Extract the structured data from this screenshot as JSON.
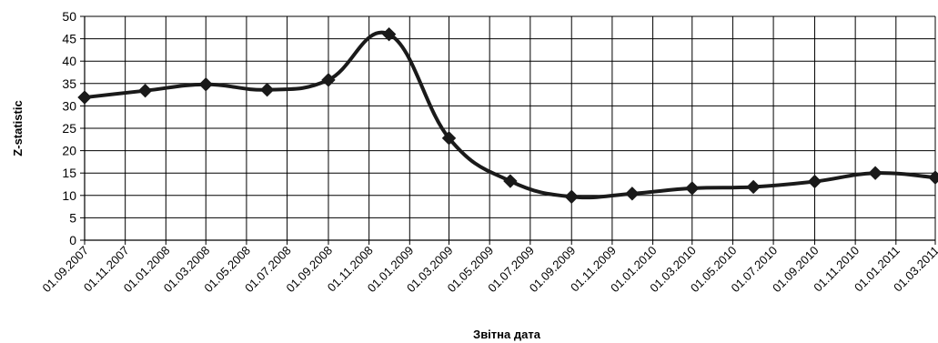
{
  "chart_data": {
    "type": "line",
    "title": "",
    "xlabel": "Звітна дата",
    "ylabel": "Z-statistic",
    "ylim": [
      0,
      50
    ],
    "yticks": [
      0,
      5,
      10,
      15,
      20,
      25,
      30,
      35,
      40,
      45,
      50
    ],
    "xticks": [
      "01.09.2007",
      "01.11.2007",
      "01.01.2008",
      "01.03.2008",
      "01.05.2008",
      "01.07.2008",
      "01.09.2008",
      "01.11.2008",
      "01.01.2009",
      "01.03.2009",
      "01.05.2009",
      "01.07.2009",
      "01.09.2009",
      "01.11.2009",
      "01.01.2010",
      "01.03.2010",
      "01.05.2010",
      "01.07.2010",
      "01.09.2010",
      "01.11.2010",
      "01.01.2011",
      "01.03.2011"
    ],
    "xlim": [
      "2007-09-01",
      "2011-03-01"
    ],
    "grid": true,
    "legend": "none",
    "line_color": "#1a1a1a",
    "series": [
      {
        "points": [
          {
            "x": "2007-09-01",
            "y": 31.9
          },
          {
            "x": "2007-12-01",
            "y": 33.4
          },
          {
            "x": "2008-03-01",
            "y": 34.8
          },
          {
            "x": "2008-06-01",
            "y": 33.6
          },
          {
            "x": "2008-09-01",
            "y": 35.8
          },
          {
            "x": "2008-12-01",
            "y": 46.0
          },
          {
            "x": "2009-03-01",
            "y": 22.8
          },
          {
            "x": "2009-06-01",
            "y": 13.2
          },
          {
            "x": "2009-09-01",
            "y": 9.7
          },
          {
            "x": "2009-12-01",
            "y": 10.4
          },
          {
            "x": "2010-03-01",
            "y": 11.6
          },
          {
            "x": "2010-06-01",
            "y": 11.9
          },
          {
            "x": "2010-09-01",
            "y": 13.1
          },
          {
            "x": "2010-12-01",
            "y": 15.0
          },
          {
            "x": "2011-03-01",
            "y": 14.0
          }
        ]
      }
    ]
  }
}
